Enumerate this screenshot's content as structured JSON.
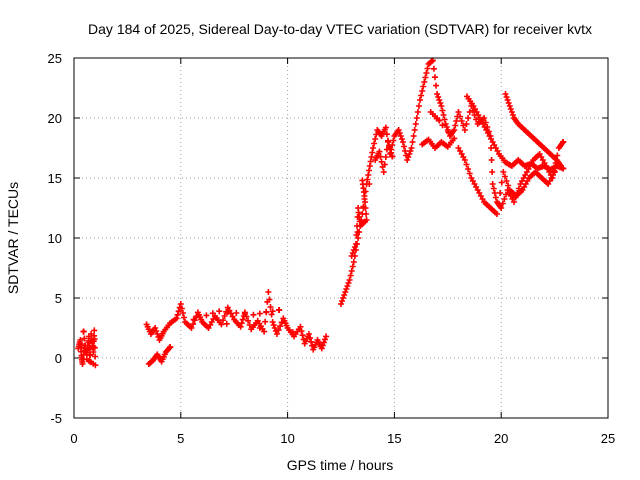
{
  "chart_data": {
    "type": "scatter",
    "title": "Day 184 of 2025, Sidereal Day-to-day VTEC variation (SDTVAR) for receiver kvtx",
    "xlabel": "GPS time / hours",
    "ylabel": "SDTVAR / TECUs",
    "xlim": [
      0,
      25
    ],
    "ylim": [
      -5,
      25
    ],
    "xticks": [
      0,
      5,
      10,
      15,
      20,
      25
    ],
    "yticks": [
      -5,
      0,
      5,
      10,
      15,
      20,
      25
    ],
    "grid": true,
    "marker": "+",
    "color": "#ff0000",
    "series": [
      {
        "name": "SDTVAR",
        "segments": [
          [
            [
              0.2,
              0.8
            ],
            [
              0.3,
              1.5
            ],
            [
              0.35,
              0.2
            ],
            [
              0.4,
              -0.5
            ],
            [
              0.5,
              1.0
            ],
            [
              0.6,
              0.3
            ],
            [
              0.7,
              1.8
            ],
            [
              0.75,
              -0.3
            ],
            [
              0.8,
              2.0
            ],
            [
              0.9,
              0.5
            ],
            [
              0.95,
              2.3
            ],
            [
              1.0,
              -0.6
            ],
            [
              0.6,
              -0.1
            ],
            [
              0.45,
              2.2
            ]
          ],
          [
            [
              3.5,
              -0.5
            ],
            [
              3.7,
              -0.2
            ],
            [
              3.9,
              0.3
            ],
            [
              4.1,
              -0.3
            ],
            [
              4.3,
              0.5
            ],
            [
              4.5,
              0.9
            ]
          ],
          [
            [
              3.4,
              2.8
            ],
            [
              3.6,
              2.0
            ],
            [
              3.8,
              2.5
            ],
            [
              4.0,
              1.5
            ],
            [
              4.2,
              2.2
            ],
            [
              4.5,
              2.9
            ],
            [
              4.8,
              3.3
            ],
            [
              5.0,
              4.5
            ],
            [
              5.2,
              3.0
            ],
            [
              5.5,
              2.5
            ],
            [
              5.8,
              3.8
            ],
            [
              6.0,
              3.0
            ],
            [
              6.3,
              2.5
            ],
            [
              6.6,
              3.5
            ],
            [
              6.9,
              2.8
            ],
            [
              7.2,
              4.2
            ],
            [
              7.5,
              3.2
            ],
            [
              7.8,
              2.6
            ],
            [
              8.0,
              3.8
            ],
            [
              8.3,
              2.4
            ],
            [
              8.6,
              3.1
            ],
            [
              8.9,
              2.2
            ],
            [
              9.1,
              5.5
            ],
            [
              9.3,
              3.0
            ],
            [
              9.5,
              2.0
            ],
            [
              9.8,
              3.3
            ],
            [
              10.0,
              2.5
            ],
            [
              10.3,
              1.8
            ],
            [
              10.6,
              2.6
            ],
            [
              10.8,
              1.2
            ],
            [
              11.0,
              2.0
            ],
            [
              11.2,
              0.7
            ],
            [
              11.4,
              1.5
            ],
            [
              11.6,
              0.8
            ],
            [
              11.8,
              1.8
            ],
            [
              5.6,
              3.2
            ],
            [
              6.8,
              3.9
            ],
            [
              8.4,
              3.6
            ],
            [
              9.6,
              4.0
            ]
          ],
          [
            [
              12.5,
              4.5
            ],
            [
              12.7,
              5.5
            ],
            [
              12.9,
              6.5
            ],
            [
              13.1,
              8.0
            ],
            [
              13.3,
              10.0
            ],
            [
              13.5,
              12.0
            ],
            [
              13.7,
              14.5
            ],
            [
              13.85,
              16.0
            ],
            [
              14.0,
              17.5
            ],
            [
              14.2,
              19.0
            ],
            [
              14.4,
              18.5
            ],
            [
              14.6,
              19.2
            ],
            [
              14.8,
              17.0
            ],
            [
              15.0,
              18.5
            ],
            [
              15.2,
              19.0
            ],
            [
              15.4,
              18.0
            ],
            [
              15.6,
              16.5
            ],
            [
              15.8,
              17.5
            ],
            [
              16.0,
              19.5
            ],
            [
              16.2,
              21.5
            ],
            [
              16.4,
              23.0
            ],
            [
              16.6,
              24.5
            ],
            [
              16.8,
              24.8
            ],
            [
              17.0,
              22.0
            ],
            [
              17.2,
              21.0
            ],
            [
              17.4,
              19.5
            ],
            [
              17.6,
              18.5
            ],
            [
              17.8,
              19.0
            ],
            [
              18.0,
              20.5
            ],
            [
              18.3,
              19.0
            ],
            [
              18.6,
              21.0
            ],
            [
              18.9,
              19.5
            ],
            [
              19.2,
              20.0
            ],
            [
              19.5,
              18.5
            ],
            [
              19.6,
              14.5
            ],
            [
              19.8,
              13.0
            ],
            [
              20.0,
              12.5
            ],
            [
              20.3,
              14.0
            ],
            [
              20.6,
              13.0
            ],
            [
              20.9,
              14.5
            ],
            [
              21.2,
              15.5
            ],
            [
              21.5,
              16.5
            ],
            [
              21.8,
              17.0
            ],
            [
              22.1,
              16.0
            ],
            [
              22.4,
              15.0
            ],
            [
              22.7,
              17.5
            ],
            [
              22.9,
              18.0
            ]
          ],
          [
            [
              16.3,
              17.8
            ],
            [
              16.6,
              18.2
            ],
            [
              16.9,
              17.5
            ],
            [
              17.2,
              18.0
            ],
            [
              17.5,
              17.6
            ],
            [
              17.8,
              18.3
            ],
            [
              16.7,
              20.5
            ],
            [
              17.1,
              19.8
            ]
          ],
          [
            [
              18.4,
              21.8
            ],
            [
              18.7,
              21.0
            ],
            [
              19.0,
              20.0
            ],
            [
              19.3,
              19.0
            ],
            [
              19.6,
              18.0
            ],
            [
              19.9,
              17.0
            ],
            [
              20.2,
              16.3
            ],
            [
              20.5,
              16.0
            ],
            [
              20.8,
              16.5
            ],
            [
              21.1,
              16.0
            ],
            [
              21.4,
              16.2
            ],
            [
              21.7,
              15.8
            ],
            [
              22.0,
              16.0
            ],
            [
              22.3,
              15.7
            ],
            [
              22.6,
              16.0
            ],
            [
              22.9,
              15.8
            ]
          ],
          [
            [
              20.2,
              22.0
            ],
            [
              20.4,
              21.0
            ],
            [
              20.6,
              20.0
            ],
            [
              20.8,
              19.5
            ],
            [
              21.1,
              19.0
            ],
            [
              21.4,
              18.5
            ],
            [
              21.7,
              18.0
            ],
            [
              22.0,
              17.5
            ],
            [
              22.3,
              17.0
            ],
            [
              22.6,
              16.5
            ],
            [
              22.8,
              16.0
            ]
          ],
          [
            [
              18.0,
              17.5
            ],
            [
              18.3,
              16.5
            ],
            [
              18.6,
              15.0
            ],
            [
              18.9,
              14.0
            ],
            [
              19.2,
              13.0
            ],
            [
              19.5,
              12.5
            ],
            [
              19.8,
              12.0
            ],
            [
              20.1,
              15.5
            ],
            [
              20.4,
              14.0
            ],
            [
              20.7,
              13.5
            ],
            [
              21.0,
              14.0
            ],
            [
              21.3,
              15.0
            ],
            [
              21.6,
              15.5
            ],
            [
              21.9,
              15.0
            ],
            [
              22.2,
              14.5
            ],
            [
              22.5,
              15.5
            ]
          ],
          [
            [
              13.5,
              14.8
            ],
            [
              13.6,
              13.5
            ],
            [
              13.7,
              11.5
            ],
            [
              13.4,
              11.0
            ],
            [
              13.3,
              12.5
            ],
            [
              13.2,
              9.5
            ],
            [
              13.0,
              8.5
            ],
            [
              14.1,
              16.5
            ],
            [
              14.3,
              17.2
            ],
            [
              14.5,
              15.5
            ],
            [
              14.7,
              18.0
            ],
            [
              14.9,
              16.8
            ]
          ]
        ]
      }
    ]
  }
}
